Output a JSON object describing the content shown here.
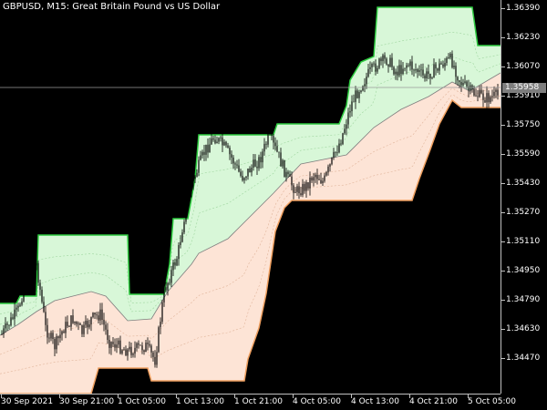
{
  "chart_title": "GBPUSD, M15:  Great Britain Pound vs US Dollar",
  "current_price": "1.35958",
  "price_labels": [
    "1.36390",
    "1.36230",
    "1.36070",
    "1.35910",
    "1.35750",
    "1.35590",
    "1.35430",
    "1.35270",
    "1.35110",
    "1.34950",
    "1.34790",
    "1.34630",
    "1.34470"
  ],
  "time_labels": [
    "30 Sep 2021",
    "30 Sep 21:00",
    "1 Oct 05:00",
    "1 Oct 13:00",
    "1 Oct 21:00",
    "4 Oct 05:00",
    "4 Oct 13:00",
    "4 Oct 21:00",
    "5 Oct 05:00"
  ],
  "colors": {
    "background": "#000000",
    "upper_band": "#2ecc40",
    "upper_fill": "#d8f7d8",
    "lower_band": "#f0a060",
    "lower_fill": "#fde4d6",
    "candle": "#000000",
    "midline": "#7f7f7f"
  }
}
